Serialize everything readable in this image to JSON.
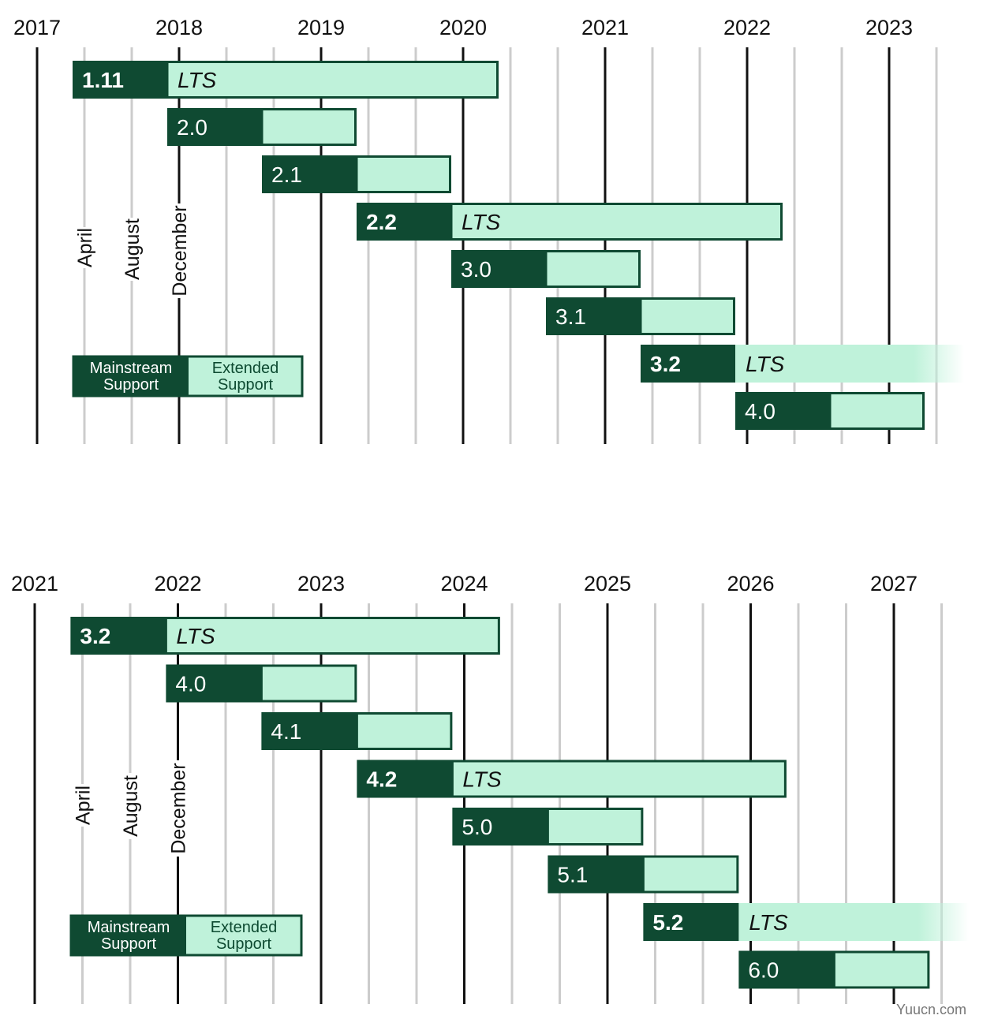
{
  "colors": {
    "mainstream": "#0f4a32",
    "extended": "#bff2da",
    "border": "#0f4a32",
    "major_grid": "#111111",
    "minor_grid": "#cccccc"
  },
  "watermark": "Yuucn.com",
  "chart_data": [
    {
      "type": "gantt",
      "x_axis_years": [
        "2017",
        "2018",
        "2019",
        "2020",
        "2021",
        "2022",
        "2023"
      ],
      "x_range": [
        "2017-01",
        "2023-05"
      ],
      "minor_ticks": "every 4 months (April, August, December)",
      "month_labels": [
        "April",
        "August",
        "December"
      ],
      "legend": {
        "mainstream": "Mainstream Support",
        "extended": "Extended Support",
        "placement": "bottom-left"
      },
      "releases": [
        {
          "version": "1.11",
          "lts": true,
          "lts_label": "LTS",
          "release": "2017-04",
          "mainstream_end": "2017-12",
          "extended_end": "2020-04",
          "fade": false
        },
        {
          "version": "2.0",
          "lts": false,
          "lts_label": "",
          "release": "2017-12",
          "mainstream_end": "2018-08",
          "extended_end": "2019-04",
          "fade": false
        },
        {
          "version": "2.1",
          "lts": false,
          "lts_label": "",
          "release": "2018-08",
          "mainstream_end": "2019-04",
          "extended_end": "2019-12",
          "fade": false
        },
        {
          "version": "2.2",
          "lts": true,
          "lts_label": "LTS",
          "release": "2019-04",
          "mainstream_end": "2019-12",
          "extended_end": "2022-04",
          "fade": false
        },
        {
          "version": "3.0",
          "lts": false,
          "lts_label": "",
          "release": "2019-12",
          "mainstream_end": "2020-08",
          "extended_end": "2021-04",
          "fade": false
        },
        {
          "version": "3.1",
          "lts": false,
          "lts_label": "",
          "release": "2020-08",
          "mainstream_end": "2021-04",
          "extended_end": "2021-12",
          "fade": false
        },
        {
          "version": "3.2",
          "lts": true,
          "lts_label": "LTS",
          "release": "2021-04",
          "mainstream_end": "2021-12",
          "extended_end": "2024-04",
          "fade": true
        },
        {
          "version": "4.0",
          "lts": false,
          "lts_label": "",
          "release": "2021-12",
          "mainstream_end": "2022-08",
          "extended_end": "2023-04",
          "fade": false
        }
      ]
    },
    {
      "type": "gantt",
      "x_axis_years": [
        "2021",
        "2022",
        "2023",
        "2024",
        "2025",
        "2026",
        "2027"
      ],
      "x_range": [
        "2021-01",
        "2027-05"
      ],
      "minor_ticks": "every 4 months (April, August, December)",
      "month_labels": [
        "April",
        "August",
        "December"
      ],
      "legend": {
        "mainstream": "Mainstream Support",
        "extended": "Extended Support",
        "placement": "bottom-left"
      },
      "releases": [
        {
          "version": "3.2",
          "lts": true,
          "lts_label": "LTS",
          "release": "2021-04",
          "mainstream_end": "2021-12",
          "extended_end": "2024-04",
          "fade": false
        },
        {
          "version": "4.0",
          "lts": false,
          "lts_label": "",
          "release": "2021-12",
          "mainstream_end": "2022-08",
          "extended_end": "2023-04",
          "fade": false
        },
        {
          "version": "4.1",
          "lts": false,
          "lts_label": "",
          "release": "2022-08",
          "mainstream_end": "2023-04",
          "extended_end": "2023-12",
          "fade": false
        },
        {
          "version": "4.2",
          "lts": true,
          "lts_label": "LTS",
          "release": "2023-04",
          "mainstream_end": "2023-12",
          "extended_end": "2026-04",
          "fade": false
        },
        {
          "version": "5.0",
          "lts": false,
          "lts_label": "",
          "release": "2023-12",
          "mainstream_end": "2024-08",
          "extended_end": "2025-04",
          "fade": false
        },
        {
          "version": "5.1",
          "lts": false,
          "lts_label": "",
          "release": "2024-08",
          "mainstream_end": "2025-04",
          "extended_end": "2025-12",
          "fade": false
        },
        {
          "version": "5.2",
          "lts": true,
          "lts_label": "LTS",
          "release": "2025-04",
          "mainstream_end": "2025-12",
          "extended_end": "2028-04",
          "fade": true
        },
        {
          "version": "6.0",
          "lts": false,
          "lts_label": "",
          "release": "2025-12",
          "mainstream_end": "2026-08",
          "extended_end": "2027-04",
          "fade": false
        }
      ]
    }
  ]
}
